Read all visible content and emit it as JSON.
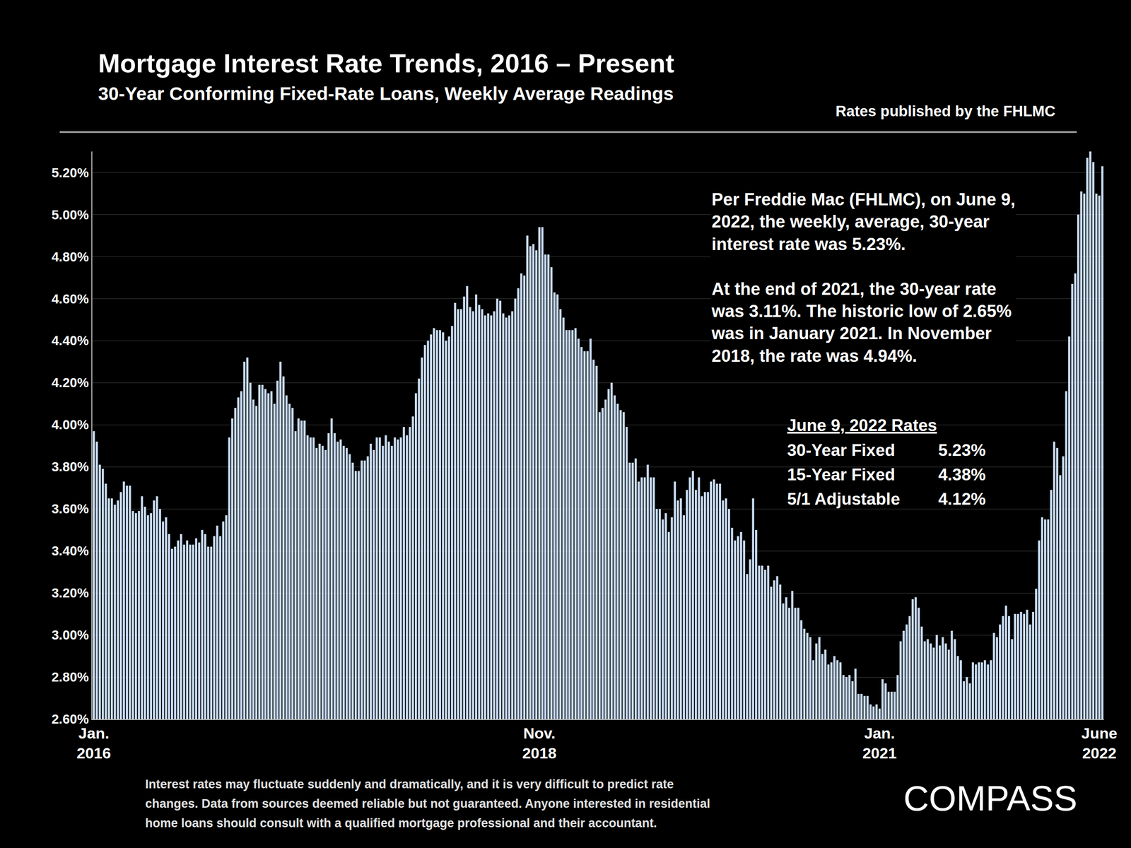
{
  "chart_data": {
    "type": "bar",
    "title": "Mortgage Interest Rate Trends, 2016 – Present",
    "subtitle": "30-Year Conforming Fixed-Rate Loans, Weekly Average Readings",
    "source": "Rates published by the FHLMC",
    "categories": [
      "Jan.\n2016",
      null,
      null,
      null,
      null,
      null,
      null,
      null,
      null,
      null,
      null,
      null,
      null,
      null,
      null,
      null,
      null,
      null,
      null,
      null,
      null,
      null,
      null,
      null,
      null,
      null,
      null,
      null,
      null,
      null,
      null,
      null,
      null,
      null,
      null,
      null,
      null,
      null,
      null,
      null,
      null,
      null,
      null,
      null,
      null,
      null,
      null,
      null,
      null,
      null,
      null,
      null,
      null,
      null,
      null,
      null,
      null,
      null,
      null,
      null,
      null,
      null,
      null,
      null,
      null,
      null,
      null,
      null,
      null,
      null,
      null,
      null,
      null,
      null,
      null,
      null,
      null,
      null,
      null,
      null,
      null,
      null,
      null,
      null,
      null,
      null,
      null,
      null,
      null,
      null,
      null,
      null,
      null,
      null,
      null,
      null,
      null,
      null,
      null,
      null,
      null,
      null,
      null,
      null,
      null,
      null,
      null,
      null,
      null,
      null,
      null,
      null,
      null,
      null,
      null,
      null,
      null,
      null,
      null,
      null,
      null,
      null,
      null,
      null,
      null,
      null,
      null,
      null,
      null,
      null,
      null,
      null,
      null,
      null,
      null,
      null,
      null,
      null,
      null,
      null,
      null,
      null,
      null,
      null,
      null,
      null,
      null,
      null,
      "Nov.\n2018",
      null,
      null,
      null,
      null,
      null,
      null,
      null,
      null,
      null,
      null,
      null,
      null,
      null,
      null,
      null,
      null,
      null,
      null,
      null,
      null,
      null,
      null,
      null,
      null,
      null,
      null,
      null,
      null,
      null,
      null,
      null,
      null,
      null,
      null,
      null,
      null,
      null,
      null,
      null,
      null,
      null,
      null,
      null,
      null,
      null,
      null,
      null,
      null,
      null,
      null,
      null,
      null,
      null,
      null,
      null,
      null,
      null,
      null,
      null,
      null,
      null,
      null,
      null,
      null,
      null,
      null,
      null,
      null,
      null,
      null,
      null,
      null,
      null,
      null,
      null,
      null,
      null,
      null,
      null,
      null,
      null,
      null,
      null,
      null,
      null,
      null,
      null,
      null,
      null,
      null,
      null,
      null,
      null,
      null,
      null,
      null,
      null,
      null,
      null,
      null,
      null,
      null,
      null,
      null,
      null,
      null,
      null,
      null,
      null,
      null,
      null,
      null,
      "Jan.\n2021",
      null,
      null,
      null,
      null,
      null,
      null,
      null,
      null,
      null,
      null,
      null,
      null,
      null,
      null,
      null,
      null,
      null,
      null,
      null,
      null,
      null,
      null,
      null,
      null,
      null,
      null,
      null,
      null,
      null,
      null,
      null,
      null,
      null,
      null,
      null,
      null,
      null,
      null,
      null,
      null,
      null,
      null,
      null,
      null,
      null,
      null,
      null,
      null,
      null,
      null,
      null,
      null,
      null,
      null,
      null,
      null,
      null,
      null,
      null,
      null,
      null,
      null,
      null,
      null,
      null,
      null,
      null,
      null,
      null,
      null,
      null,
      null,
      "June\n2022",
      null
    ],
    "values": [
      3.97,
      3.92,
      3.81,
      3.79,
      3.72,
      3.65,
      3.65,
      3.62,
      3.64,
      3.68,
      3.73,
      3.71,
      3.71,
      3.59,
      3.58,
      3.59,
      3.66,
      3.61,
      3.57,
      3.58,
      3.64,
      3.66,
      3.6,
      3.54,
      3.56,
      3.48,
      3.41,
      3.42,
      3.45,
      3.48,
      3.43,
      3.45,
      3.43,
      3.43,
      3.46,
      3.44,
      3.5,
      3.48,
      3.42,
      3.42,
      3.47,
      3.52,
      3.47,
      3.54,
      3.57,
      3.94,
      4.03,
      4.08,
      4.13,
      4.16,
      4.3,
      4.32,
      4.2,
      4.12,
      4.09,
      4.19,
      4.19,
      4.17,
      4.15,
      4.16,
      4.1,
      4.21,
      4.3,
      4.23,
      4.14,
      4.1,
      4.08,
      3.97,
      4.03,
      4.02,
      4.02,
      3.95,
      3.94,
      3.94,
      3.89,
      3.91,
      3.9,
      3.88,
      3.96,
      4.03,
      3.96,
      3.92,
      3.93,
      3.9,
      3.89,
      3.86,
      3.82,
      3.78,
      3.78,
      3.83,
      3.83,
      3.85,
      3.91,
      3.88,
      3.94,
      3.94,
      3.9,
      3.95,
      3.92,
      3.9,
      3.94,
      3.93,
      3.94,
      3.99,
      3.95,
      3.99,
      4.04,
      4.15,
      4.22,
      4.32,
      4.38,
      4.4,
      4.43,
      4.46,
      4.45,
      4.45,
      4.44,
      4.4,
      4.42,
      4.47,
      4.58,
      4.55,
      4.55,
      4.61,
      4.66,
      4.56,
      4.54,
      4.62,
      4.57,
      4.55,
      4.52,
      4.53,
      4.52,
      4.54,
      4.6,
      4.59,
      4.53,
      4.51,
      4.52,
      4.54,
      4.6,
      4.65,
      4.72,
      4.71,
      4.9,
      4.85,
      4.86,
      4.83,
      4.94,
      4.94,
      4.81,
      4.81,
      4.75,
      4.63,
      4.62,
      4.55,
      4.51,
      4.45,
      4.45,
      4.45,
      4.46,
      4.41,
      4.37,
      4.35,
      4.35,
      4.41,
      4.31,
      4.28,
      4.06,
      4.08,
      4.12,
      4.17,
      4.2,
      4.14,
      4.1,
      4.07,
      4.06,
      3.99,
      3.82,
      3.82,
      3.84,
      3.73,
      3.75,
      3.75,
      3.81,
      3.75,
      3.75,
      3.6,
      3.6,
      3.55,
      3.58,
      3.49,
      3.56,
      3.73,
      3.64,
      3.65,
      3.57,
      3.69,
      3.75,
      3.78,
      3.69,
      3.75,
      3.66,
      3.68,
      3.68,
      3.73,
      3.74,
      3.72,
      3.72,
      3.64,
      3.65,
      3.6,
      3.51,
      3.45,
      3.47,
      3.49,
      3.45,
      3.29,
      3.36,
      3.65,
      3.5,
      3.33,
      3.33,
      3.31,
      3.33,
      3.23,
      3.26,
      3.28,
      3.24,
      3.15,
      3.18,
      3.13,
      3.21,
      3.13,
      3.13,
      3.07,
      3.03,
      3.01,
      2.99,
      2.88,
      2.96,
      2.99,
      2.91,
      2.93,
      2.86,
      2.87,
      2.9,
      2.88,
      2.87,
      2.81,
      2.8,
      2.81,
      2.78,
      2.84,
      2.72,
      2.72,
      2.71,
      2.71,
      2.67,
      2.66,
      2.67,
      2.65,
      2.79,
      2.77,
      2.73,
      2.73,
      2.73,
      2.81,
      2.97,
      3.02,
      3.05,
      3.09,
      3.17,
      3.18,
      3.13,
      3.04,
      2.97,
      2.98,
      2.96,
      2.94,
      3.0,
      2.95,
      2.99,
      2.96,
      2.93,
      3.02,
      2.98,
      2.9,
      2.88,
      2.78,
      2.8,
      2.77,
      2.87,
      2.86,
      2.87,
      2.87,
      2.88,
      2.86,
      2.88,
      3.01,
      2.99,
      3.05,
      3.09,
      3.14,
      3.09,
      2.98,
      3.1,
      3.1,
      3.11,
      3.1,
      3.12,
      3.05,
      3.11,
      3.22,
      3.45,
      3.56,
      3.55,
      3.55,
      3.69,
      3.92,
      3.89,
      3.76,
      3.85,
      4.16,
      4.42,
      4.67,
      4.72,
      5.0,
      5.11,
      5.1,
      5.27,
      5.3,
      5.25,
      5.1,
      5.09,
      5.23
    ],
    "color": "#c9dcf2",
    "ylim": [
      2.6,
      5.3
    ],
    "yticks": [
      {
        "value": 2.6,
        "label": "2.60%"
      },
      {
        "value": 2.8,
        "label": "2.80%"
      },
      {
        "value": 3.0,
        "label": "3.00%"
      },
      {
        "value": 3.2,
        "label": "3.20%"
      },
      {
        "value": 3.4,
        "label": "3.40%"
      },
      {
        "value": 3.6,
        "label": "3.60%"
      },
      {
        "value": 3.8,
        "label": "3.80%"
      },
      {
        "value": 4.0,
        "label": "4.00%"
      },
      {
        "value": 4.2,
        "label": "4.20%"
      },
      {
        "value": 4.4,
        "label": "4.40%"
      },
      {
        "value": 4.6,
        "label": "4.60%"
      },
      {
        "value": 4.8,
        "label": "4.80%"
      },
      {
        "value": 5.0,
        "label": "5.00%"
      },
      {
        "value": 5.2,
        "label": "5.20%"
      }
    ],
    "grid": true,
    "note_paragraphs": [
      [
        "Per Freddie Mac (FHLMC), on June 9,",
        "2022, the weekly, average, 30-year",
        "interest rate was 5.23%."
      ],
      [
        "At the end of 2021, the 30-year rate",
        "was 3.11%. The historic low of 2.65%",
        "was in January 2021. In November",
        "2018, the rate was 4.94%."
      ]
    ],
    "rates_table": {
      "title": "June 9, 2022 Rates",
      "rows": [
        [
          "30-Year Fixed",
          "5.23%"
        ],
        [
          "15-Year Fixed",
          "4.38%"
        ],
        [
          "5/1 Adjustable",
          "4.12%"
        ]
      ]
    },
    "footer_lines": [
      "Interest rates may fluctuate suddenly and dramatically, and it is very difficult to predict rate",
      "changes. Data from sources deemed reliable but not guaranteed. Anyone interested in residential",
      "home loans should consult with a qualified mortgage professional and their accountant."
    ],
    "logo": "COMPASS"
  }
}
